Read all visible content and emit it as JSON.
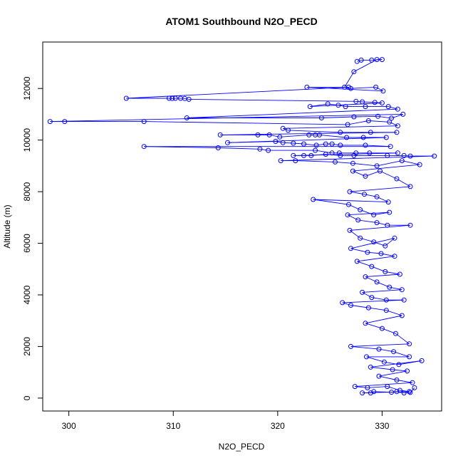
{
  "chart_data": {
    "type": "line",
    "title": "ATOM1 Southbound N2O_PECD",
    "xlabel": "N2O_PECD",
    "ylabel": "Altitude (m)",
    "xlim": [
      297.5,
      335.7
    ],
    "ylim": [
      -500,
      13800
    ],
    "xticks": [
      300,
      310,
      320,
      330
    ],
    "yticks": [
      0,
      2000,
      4000,
      6000,
      8000,
      10000,
      12000
    ],
    "series_color": "#0000ff",
    "marker": "open-circle",
    "points": [
      [
        327.6,
        13050
      ],
      [
        328.0,
        13100
      ],
      [
        329.0,
        13100
      ],
      [
        330.0,
        13120
      ],
      [
        329.5,
        13120
      ],
      [
        327.3,
        12650
      ],
      [
        326.4,
        12050
      ],
      [
        327.0,
        12000
      ],
      [
        329.4,
        12050
      ],
      [
        330.1,
        11900
      ],
      [
        322.8,
        12050
      ],
      [
        326.8,
        12050
      ],
      [
        305.5,
        11620
      ],
      [
        309.6,
        11620
      ],
      [
        309.9,
        11610
      ],
      [
        310.2,
        11620
      ],
      [
        310.7,
        11620
      ],
      [
        311.1,
        11610
      ],
      [
        311.5,
        11580
      ],
      [
        327.5,
        11500
      ],
      [
        328.1,
        11480
      ],
      [
        329.3,
        11460
      ],
      [
        330.0,
        11440
      ],
      [
        323.1,
        11300
      ],
      [
        324.8,
        11400
      ],
      [
        325.8,
        11350
      ],
      [
        326.5,
        11300
      ],
      [
        328.4,
        11300
      ],
      [
        330.6,
        11300
      ],
      [
        331.5,
        11200
      ],
      [
        311.3,
        10860
      ],
      [
        324.2,
        10860
      ],
      [
        327.3,
        10900
      ],
      [
        329.6,
        10920
      ],
      [
        330.9,
        10850
      ],
      [
        332.0,
        11000
      ],
      [
        298.2,
        10720
      ],
      [
        299.6,
        10720
      ],
      [
        307.2,
        10720
      ],
      [
        326.7,
        10600
      ],
      [
        328.7,
        10750
      ],
      [
        330.7,
        10700
      ],
      [
        331.5,
        10550
      ],
      [
        320.5,
        10450
      ],
      [
        321.0,
        10380
      ],
      [
        326.0,
        10300
      ],
      [
        328.9,
        10300
      ],
      [
        331.4,
        10300
      ],
      [
        314.5,
        10200
      ],
      [
        318.1,
        10200
      ],
      [
        319.2,
        10200
      ],
      [
        320.2,
        10120
      ],
      [
        323.0,
        10200
      ],
      [
        323.6,
        10200
      ],
      [
        324.0,
        10200
      ],
      [
        326.6,
        10100
      ],
      [
        328.2,
        10100
      ],
      [
        330.4,
        10100
      ],
      [
        315.2,
        9900
      ],
      [
        319.8,
        9950
      ],
      [
        320.5,
        9900
      ],
      [
        321.5,
        9880
      ],
      [
        322.5,
        9850
      ],
      [
        323.7,
        9800
      ],
      [
        324.6,
        9850
      ],
      [
        325.2,
        9850
      ],
      [
        326.0,
        9800
      ],
      [
        328.4,
        9800
      ],
      [
        330.8,
        9750
      ],
      [
        307.2,
        9750
      ],
      [
        314.3,
        9700
      ],
      [
        318.3,
        9650
      ],
      [
        319.1,
        9600
      ],
      [
        323.6,
        9600
      ],
      [
        325.2,
        9500
      ],
      [
        325.9,
        9500
      ],
      [
        327.5,
        9500
      ],
      [
        328.8,
        9500
      ],
      [
        331.5,
        9500
      ],
      [
        321.5,
        9400
      ],
      [
        322.5,
        9400
      ],
      [
        323.2,
        9400
      ],
      [
        324.6,
        9450
      ],
      [
        326.0,
        9400
      ],
      [
        327.3,
        9400
      ],
      [
        330.5,
        9400
      ],
      [
        332.1,
        9400
      ],
      [
        332.7,
        9380
      ],
      [
        335.0,
        9380
      ],
      [
        320.3,
        9200
      ],
      [
        321.7,
        9200
      ],
      [
        325.5,
        9150
      ],
      [
        327.2,
        9100
      ],
      [
        329.5,
        9000
      ],
      [
        331.9,
        9200
      ],
      [
        333.6,
        9050
      ],
      [
        327.2,
        8800
      ],
      [
        328.4,
        8600
      ],
      [
        329.8,
        8800
      ],
      [
        331.4,
        8500
      ],
      [
        332.7,
        8200
      ],
      [
        326.9,
        8000
      ],
      [
        328.3,
        7900
      ],
      [
        329.5,
        7800
      ],
      [
        330.6,
        7600
      ],
      [
        323.4,
        7700
      ],
      [
        326.8,
        7500
      ],
      [
        327.9,
        7300
      ],
      [
        329.2,
        7100
      ],
      [
        330.7,
        7200
      ],
      [
        326.7,
        7100
      ],
      [
        327.7,
        6900
      ],
      [
        329.5,
        6800
      ],
      [
        330.5,
        6700
      ],
      [
        332.7,
        6700
      ],
      [
        326.9,
        6500
      ],
      [
        327.9,
        6200
      ],
      [
        329.2,
        6050
      ],
      [
        330.3,
        5900
      ],
      [
        331.2,
        6200
      ],
      [
        327.0,
        5800
      ],
      [
        328.6,
        5650
      ],
      [
        329.9,
        5600
      ],
      [
        331.2,
        5500
      ],
      [
        327.6,
        5300
      ],
      [
        329.0,
        5100
      ],
      [
        330.3,
        4900
      ],
      [
        331.7,
        4800
      ],
      [
        328.4,
        4700
      ],
      [
        329.5,
        4500
      ],
      [
        330.7,
        4300
      ],
      [
        331.9,
        4200
      ],
      [
        328.1,
        4100
      ],
      [
        329.0,
        3900
      ],
      [
        330.4,
        3800
      ],
      [
        332.1,
        3800
      ],
      [
        326.2,
        3700
      ],
      [
        327.0,
        3600
      ],
      [
        328.7,
        3500
      ],
      [
        330.4,
        3400
      ],
      [
        331.9,
        3200
      ],
      [
        328.4,
        2900
      ],
      [
        330.0,
        2700
      ],
      [
        331.3,
        2500
      ],
      [
        332.6,
        2100
      ],
      [
        327.0,
        2000
      ],
      [
        329.7,
        1900
      ],
      [
        331.1,
        1800
      ],
      [
        332.6,
        1600
      ],
      [
        328.5,
        1600
      ],
      [
        330.2,
        1400
      ],
      [
        331.6,
        1300
      ],
      [
        333.8,
        1450
      ],
      [
        328.9,
        1200
      ],
      [
        331.0,
        1100
      ],
      [
        332.4,
        1050
      ],
      [
        329.7,
        850
      ],
      [
        331.4,
        700
      ],
      [
        332.9,
        600
      ],
      [
        327.4,
        450
      ],
      [
        328.6,
        400
      ],
      [
        330.5,
        450
      ],
      [
        331.7,
        300
      ],
      [
        332.6,
        250
      ],
      [
        328.1,
        200
      ],
      [
        328.9,
        200
      ],
      [
        329.2,
        250
      ],
      [
        330.9,
        230
      ],
      [
        331.4,
        250
      ],
      [
        332.1,
        200
      ],
      [
        332.7,
        220
      ],
      [
        333.1,
        400
      ]
    ]
  }
}
